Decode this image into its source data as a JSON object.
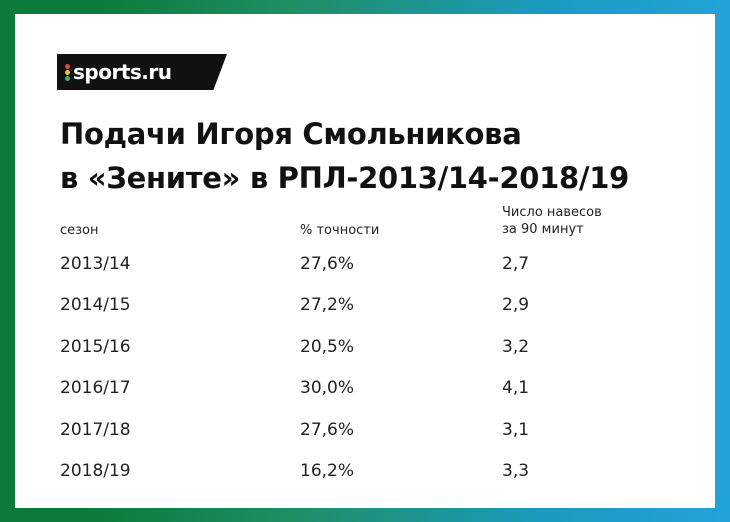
{
  "brand": {
    "logo_text": "sports.ru",
    "dot_colors": [
      "#e8463b",
      "#f4c51c",
      "#3bb55a"
    ]
  },
  "title": {
    "line1": "Подачи Игоря Смольникова",
    "line2": "в «Зените» в РПЛ-2013/14-2018/19"
  },
  "table": {
    "headers": {
      "season": "сезон",
      "accuracy": "% точности",
      "crosses_line1": "Число навесов",
      "crosses_line2": "за 90 минут"
    },
    "rows": [
      {
        "season": "2013/14",
        "accuracy": "27,6%",
        "crosses": "2,7"
      },
      {
        "season": "2014/15",
        "accuracy": "27,2%",
        "crosses": "2,9"
      },
      {
        "season": "2015/16",
        "accuracy": "20,5%",
        "crosses": "3,2"
      },
      {
        "season": "2016/17",
        "accuracy": "30,0%",
        "crosses": "4,1"
      },
      {
        "season": "2017/18",
        "accuracy": "27,6%",
        "crosses": "3,1"
      },
      {
        "season": "2018/19",
        "accuracy": "16,2%",
        "crosses": "3,3"
      }
    ]
  }
}
